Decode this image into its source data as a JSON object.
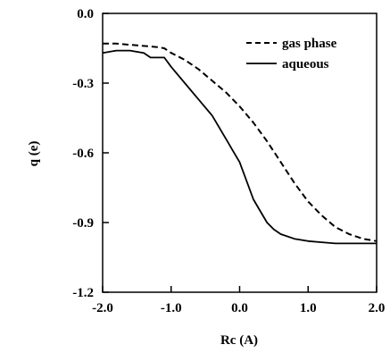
{
  "chart_data": {
    "type": "line",
    "title": "",
    "xlabel": "Rc (A)",
    "ylabel": "q (e)",
    "xlim": [
      -2.0,
      2.0
    ],
    "ylim": [
      -1.2,
      0.0
    ],
    "x_ticks": [
      -2.0,
      -1.0,
      0.0,
      1.0,
      2.0
    ],
    "x_tick_labels": [
      "-2.0",
      "-1.0",
      "0.0",
      "1.0",
      "2.0"
    ],
    "y_ticks": [
      0.0,
      -0.3,
      -0.6,
      -0.9,
      -1.2
    ],
    "y_tick_labels": [
      "0.0",
      "-0.3",
      "-0.6",
      "-0.9",
      "-1.2"
    ],
    "grid": false,
    "legend_position": "top-right",
    "series": [
      {
        "name": "gas phase",
        "style": "dashed",
        "color": "#000000",
        "x": [
          -2.0,
          -1.8,
          -1.6,
          -1.4,
          -1.2,
          -1.1,
          -1.0,
          -0.8,
          -0.6,
          -0.4,
          -0.2,
          0.0,
          0.2,
          0.4,
          0.6,
          0.8,
          1.0,
          1.2,
          1.4,
          1.6,
          1.8,
          2.0
        ],
        "y": [
          -0.13,
          -0.13,
          -0.135,
          -0.14,
          -0.145,
          -0.15,
          -0.17,
          -0.2,
          -0.24,
          -0.29,
          -0.34,
          -0.4,
          -0.47,
          -0.55,
          -0.64,
          -0.73,
          -0.81,
          -0.87,
          -0.92,
          -0.95,
          -0.97,
          -0.98
        ]
      },
      {
        "name": "aqueous",
        "style": "solid",
        "color": "#000000",
        "x": [
          -2.0,
          -1.8,
          -1.6,
          -1.4,
          -1.3,
          -1.1,
          -1.0,
          -0.8,
          -0.6,
          -0.4,
          -0.2,
          -0.1,
          0.0,
          0.1,
          0.2,
          0.3,
          0.4,
          0.5,
          0.6,
          0.8,
          1.0,
          1.2,
          1.4,
          1.6,
          1.8,
          2.0
        ],
        "y": [
          -0.17,
          -0.16,
          -0.16,
          -0.17,
          -0.19,
          -0.19,
          -0.23,
          -0.3,
          -0.37,
          -0.44,
          -0.54,
          -0.59,
          -0.64,
          -0.72,
          -0.8,
          -0.85,
          -0.9,
          -0.93,
          -0.95,
          -0.97,
          -0.98,
          -0.985,
          -0.99,
          -0.99,
          -0.99,
          -0.99
        ]
      }
    ]
  }
}
